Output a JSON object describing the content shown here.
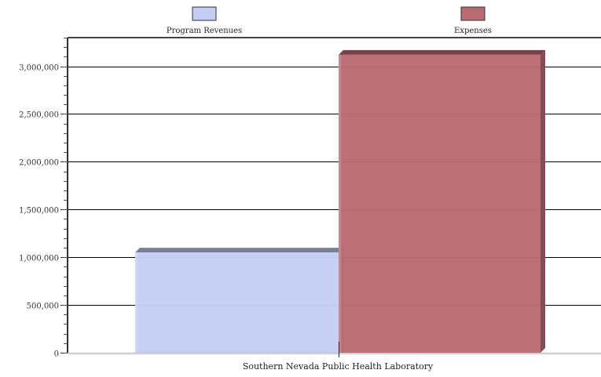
{
  "chart_data": {
    "type": "bar",
    "categories": [
      "Southern Nevada Public Health Laboratory"
    ],
    "series": [
      {
        "name": "Program Revenues",
        "values": [
          1050000
        ],
        "color": "#c5cdf5"
      },
      {
        "name": "Expenses",
        "values": [
          3120000
        ],
        "color": "#b96b74"
      }
    ],
    "ylim": [
      0,
      3300000
    ],
    "yticks": [
      {
        "value": 0,
        "label": "0"
      },
      {
        "value": 500000,
        "label": "500,000"
      },
      {
        "value": 1000000,
        "label": "1,000,000"
      },
      {
        "value": 1500000,
        "label": "1,500,000"
      },
      {
        "value": 2000000,
        "label": "2,000,000"
      },
      {
        "value": 2500000,
        "label": "2,500,000"
      },
      {
        "value": 3000000,
        "label": "3,000,000"
      }
    ],
    "grid": true,
    "legend_position": "top",
    "title": "",
    "xlabel": "",
    "ylabel": ""
  }
}
